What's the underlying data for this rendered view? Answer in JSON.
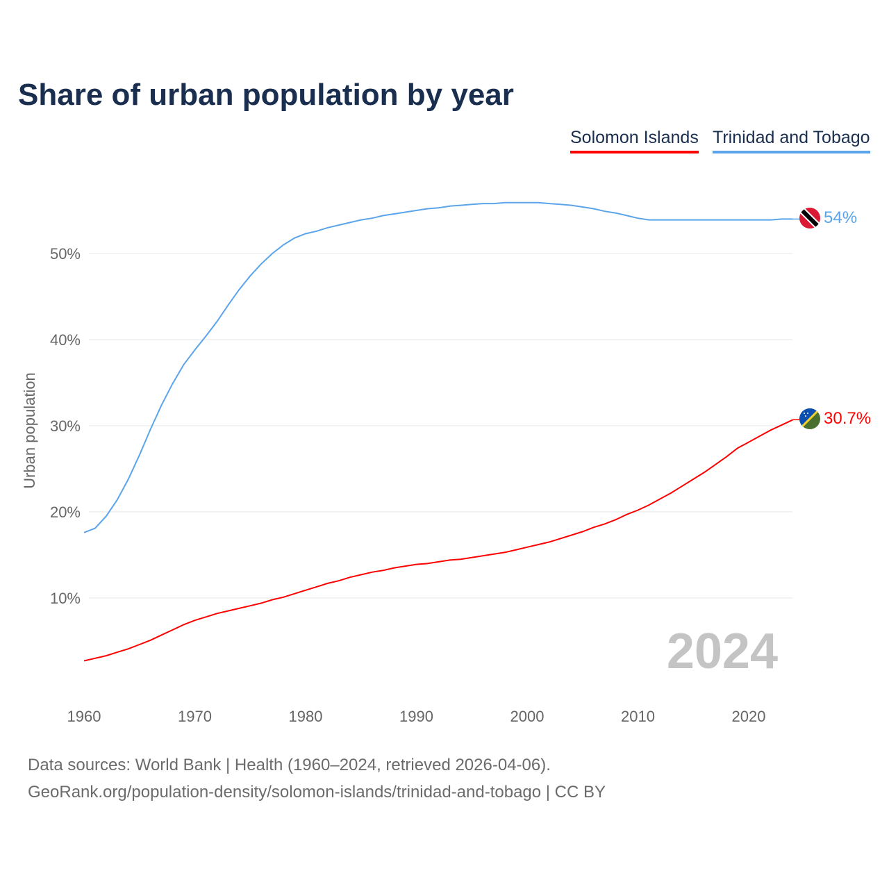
{
  "title": "Share of urban population by year",
  "footer": {
    "line1": "Data sources: World Bank | Health (1960–2024, retrieved 2026-04-06).",
    "line2": "GeoRank.org/population-density/solomon-islands/trinidad-and-tobago | CC BY"
  },
  "chart_data": {
    "type": "line",
    "title": "Share of urban population by year",
    "xlabel": "",
    "ylabel": "Urban population",
    "xlim": [
      1960,
      2024
    ],
    "ylim": [
      0,
      60
    ],
    "xticks": [
      "1960",
      "1970",
      "1980",
      "1990",
      "2000",
      "2010",
      "2020"
    ],
    "yticks": [
      "10%",
      "20%",
      "30%",
      "40%",
      "50%"
    ],
    "ytick_values": [
      10,
      20,
      30,
      40,
      50
    ],
    "xtick_values": [
      1960,
      1970,
      1980,
      1990,
      2000,
      2010,
      2020
    ],
    "grid": true,
    "legend_position": "top-right",
    "year_watermark": "2024",
    "x_start": 1960,
    "series": [
      {
        "name": "Solomon Islands",
        "color": "#ff0000",
        "end_label": "30.7%",
        "values": [
          2.7,
          3.0,
          3.3,
          3.7,
          4.1,
          4.6,
          5.1,
          5.7,
          6.3,
          6.9,
          7.4,
          7.8,
          8.2,
          8.5,
          8.8,
          9.1,
          9.4,
          9.8,
          10.1,
          10.5,
          10.9,
          11.3,
          11.7,
          12.0,
          12.4,
          12.7,
          13.0,
          13.2,
          13.5,
          13.7,
          13.9,
          14.0,
          14.2,
          14.4,
          14.5,
          14.7,
          14.9,
          15.1,
          15.3,
          15.6,
          15.9,
          16.2,
          16.5,
          16.9,
          17.3,
          17.7,
          18.2,
          18.6,
          19.1,
          19.7,
          20.2,
          20.8,
          21.5,
          22.2,
          23.0,
          23.8,
          24.6,
          25.5,
          26.4,
          27.4,
          28.1,
          28.8,
          29.5,
          30.1,
          30.7
        ]
      },
      {
        "name": "Trinidad and Tobago",
        "color": "#5ba4ea",
        "end_label": "54%",
        "values": [
          17.6,
          18.1,
          19.5,
          21.4,
          23.8,
          26.6,
          29.6,
          32.4,
          34.9,
          37.1,
          38.8,
          40.4,
          42.1,
          44.0,
          45.8,
          47.4,
          48.8,
          50.0,
          51.0,
          51.8,
          52.3,
          52.6,
          53.0,
          53.3,
          53.6,
          53.9,
          54.1,
          54.4,
          54.6,
          54.8,
          55.0,
          55.2,
          55.3,
          55.5,
          55.6,
          55.7,
          55.8,
          55.8,
          55.9,
          55.9,
          55.9,
          55.9,
          55.8,
          55.7,
          55.6,
          55.4,
          55.2,
          54.9,
          54.7,
          54.4,
          54.1,
          53.9,
          53.9,
          53.9,
          53.9,
          53.9,
          53.9,
          53.9,
          53.9,
          53.9,
          53.9,
          53.9,
          53.9,
          54.0,
          54.0
        ]
      }
    ]
  }
}
